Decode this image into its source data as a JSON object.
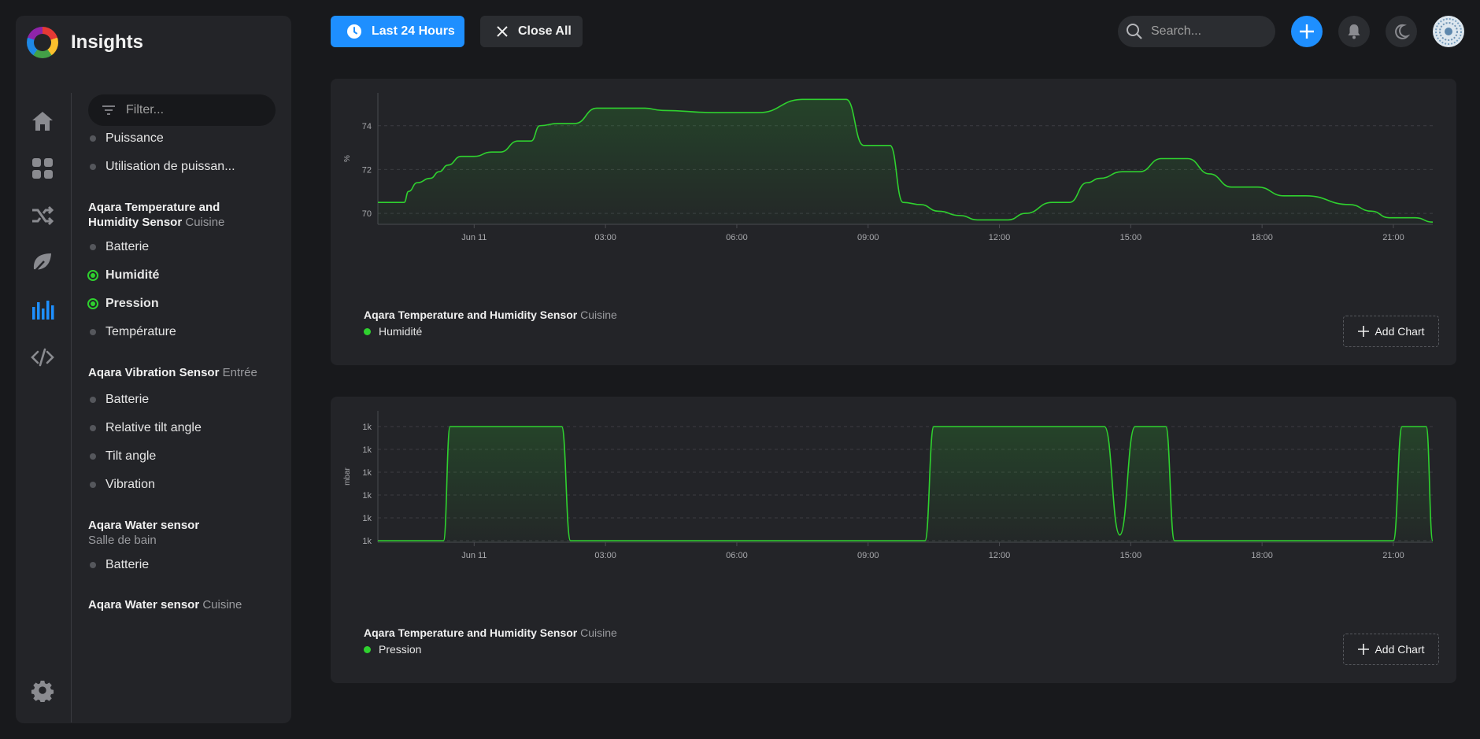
{
  "app": {
    "title": "Insights"
  },
  "toolbar": {
    "time_range_label": "Last 24 Hours",
    "close_all_label": "Close All",
    "search_placeholder": "Search..."
  },
  "sidebar": {
    "filter_placeholder": "Filter...",
    "nav_icons": [
      "home-icon",
      "dashboard-icon",
      "automation-icon",
      "energy-icon",
      "insights-icon",
      "developer-icon"
    ],
    "settings_icon": "gear-icon",
    "items": [
      {
        "label": "Puissance",
        "selected": false
      },
      {
        "label": "Utilisation de puissan...",
        "selected": false
      }
    ],
    "groups": [
      {
        "name": "Aqara Temperature and Humidity Sensor",
        "location": "Cuisine",
        "items": [
          {
            "label": "Batterie",
            "selected": false
          },
          {
            "label": "Humidité",
            "selected": true
          },
          {
            "label": "Pression",
            "selected": true
          },
          {
            "label": "Température",
            "selected": false
          }
        ]
      },
      {
        "name": "Aqara Vibration Sensor",
        "location": "Entrée",
        "items": [
          {
            "label": "Batterie",
            "selected": false
          },
          {
            "label": "Relative tilt angle",
            "selected": false
          },
          {
            "label": "Tilt angle",
            "selected": false
          },
          {
            "label": "Vibration",
            "selected": false
          }
        ]
      },
      {
        "name": "Aqara Water sensor",
        "location": "Salle de bain",
        "items": [
          {
            "label": "Batterie",
            "selected": false
          }
        ]
      },
      {
        "name": "Aqara Water sensor",
        "location": "Cuisine",
        "items": []
      }
    ]
  },
  "charts": [
    {
      "device": "Aqara Temperature and Humidity Sensor",
      "location": "Cuisine",
      "series_name": "Humidité",
      "add_label": "Add Chart"
    },
    {
      "device": "Aqara Temperature and Humidity Sensor",
      "location": "Cuisine",
      "series_name": "Pression",
      "add_label": "Add Chart"
    }
  ],
  "colors": {
    "accent": "#1e8fff",
    "series": "#2fd12f",
    "background": "#18191c",
    "panel": "#232428"
  },
  "chart_data": [
    {
      "type": "area",
      "ylabel": "%",
      "xlabel": "",
      "ylim": [
        69.5,
        75.5
      ],
      "yticks": [
        "70",
        "72",
        "74"
      ],
      "ytick_values": [
        70,
        72,
        74
      ],
      "xticks": [
        "Jun 11",
        "03:00",
        "06:00",
        "09:00",
        "12:00",
        "15:00",
        "18:00",
        "21:00"
      ],
      "xtick_hours": [
        0,
        3,
        6,
        9,
        12,
        15,
        18,
        21
      ],
      "xlim_hours": [
        -2.2,
        21.9
      ],
      "grid": true,
      "series": [
        {
          "name": "Humidité",
          "x": [
            -2.2,
            -1.6,
            -1.5,
            -1.3,
            -1.0,
            -0.8,
            -0.6,
            -0.3,
            0.0,
            0.4,
            0.6,
            1.0,
            1.3,
            1.5,
            1.9,
            2.3,
            2.8,
            3.5,
            3.9,
            4.3,
            5.5,
            6.5,
            7.5,
            8.5,
            8.9,
            9.5,
            9.8,
            10.2,
            10.6,
            11.1,
            11.5,
            12.2,
            12.6,
            13.2,
            13.6,
            14.0,
            14.3,
            14.8,
            15.2,
            15.7,
            16.3,
            16.8,
            17.3,
            17.9,
            18.5,
            19.0,
            20.0,
            20.5,
            20.9,
            21.5,
            21.9
          ],
          "y": [
            70.5,
            70.5,
            71.0,
            71.4,
            71.6,
            71.9,
            72.2,
            72.6,
            72.6,
            72.8,
            72.8,
            73.3,
            73.3,
            74.0,
            74.1,
            74.1,
            74.8,
            74.8,
            74.8,
            74.7,
            74.6,
            74.6,
            75.2,
            75.2,
            73.1,
            73.1,
            70.5,
            70.4,
            70.1,
            69.9,
            69.7,
            69.7,
            70.0,
            70.5,
            70.5,
            71.4,
            71.6,
            71.9,
            71.9,
            72.5,
            72.5,
            71.8,
            71.2,
            71.2,
            70.8,
            70.8,
            70.4,
            70.1,
            69.8,
            69.8,
            69.6
          ]
        }
      ]
    },
    {
      "type": "area",
      "ylabel": "mbar",
      "xlabel": "",
      "yticks": [
        "1k",
        "1k",
        "1k",
        "1k",
        "1k",
        "1k"
      ],
      "ytick_levels": [
        0,
        0.2,
        0.4,
        0.6,
        0.8,
        1.0
      ],
      "xticks": [
        "Jun 11",
        "03:00",
        "06:00",
        "09:00",
        "12:00",
        "15:00",
        "18:00",
        "21:00"
      ],
      "xtick_hours": [
        0,
        3,
        6,
        9,
        12,
        15,
        18,
        21
      ],
      "xlim_hours": [
        -2.2,
        21.9
      ],
      "grid": true,
      "series": [
        {
          "name": "Pression",
          "x": [
            -2.2,
            -0.7,
            -0.55,
            2.0,
            2.2,
            10.3,
            10.5,
            14.4,
            14.75,
            15.1,
            15.8,
            16.0,
            21.0,
            21.2,
            21.75,
            21.9
          ],
          "y": [
            0,
            0,
            1,
            1,
            0,
            0,
            1,
            1,
            0.05,
            1,
            1,
            0,
            0,
            1,
            1,
            0
          ]
        }
      ]
    }
  ]
}
